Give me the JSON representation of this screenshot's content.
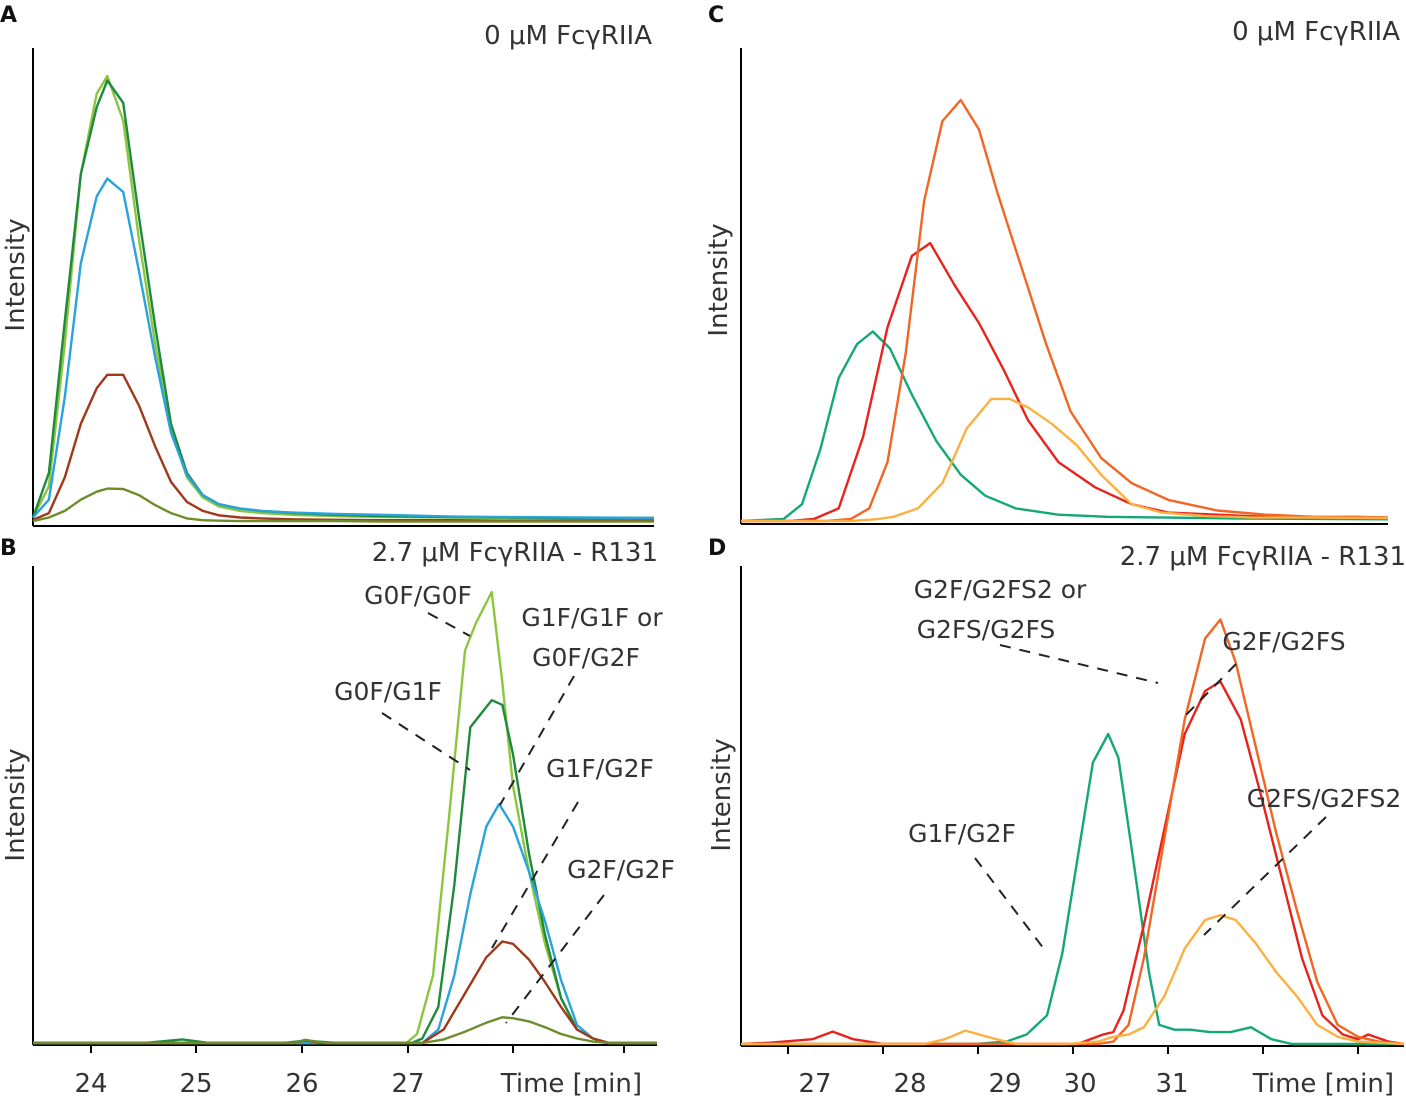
{
  "colors": {
    "G0F/G0F": "#8cc63f",
    "G0F/G1F": "#1e8a3c",
    "G1F/G1F or G0F/G2F": "#29a3dd",
    "G1F/G2F_A": "#a0391c",
    "G2F/G2F": "#6f8c2a",
    "G1F/G2F_C": "#14a876",
    "G2F/G2FS": "#e8231e",
    "G2F/G2FS2 or G2FS/G2FS": "#f26522",
    "G2FS/G2FS2": "#fbb040"
  },
  "chart_data": [
    {
      "panel": "A",
      "type": "line",
      "title": "0 μM FcγRIIA",
      "ylabel": "Intensity",
      "xlabel": "",
      "grid": false,
      "xlim": [
        23.45,
        29.3
      ],
      "ylim": [
        0,
        100
      ],
      "series": [
        {
          "name": "G0F/G0F",
          "color_key": "G0F/G0F",
          "x": [
            23.45,
            23.6,
            23.75,
            23.9,
            24.05,
            24.15,
            24.3,
            24.45,
            24.6,
            24.75,
            24.9,
            25.05,
            25.2,
            25.4,
            25.6,
            25.9,
            26.3,
            26.8,
            27.4,
            28.0,
            28.6,
            29.3
          ],
          "y": [
            1,
            8,
            40,
            78,
            96,
            100,
            90,
            63,
            40,
            21,
            10,
            5.5,
            3.5,
            2.5,
            2,
            1.6,
            1.3,
            1.1,
            1,
            0.9,
            0.8,
            0.8
          ]
        },
        {
          "name": "G0F/G1F",
          "color_key": "G0F/G1F",
          "x": [
            23.45,
            23.6,
            23.75,
            23.9,
            24.05,
            24.15,
            24.3,
            24.45,
            24.6,
            24.75,
            24.9,
            25.05,
            25.2,
            25.4,
            25.6,
            25.9,
            26.3,
            26.8,
            27.4,
            28.0,
            28.6,
            29.3
          ],
          "y": [
            1,
            11,
            45,
            78,
            93,
            99,
            94,
            68,
            44,
            22,
            11,
            6,
            4,
            3,
            2.5,
            2,
            1.6,
            1.3,
            1.1,
            1,
            0.9,
            0.9
          ]
        },
        {
          "name": "G1F/G1F or G0F/G2F",
          "color_key": "G1F/G1F or G0F/G2F",
          "x": [
            23.45,
            23.6,
            23.75,
            23.9,
            24.05,
            24.15,
            24.3,
            24.45,
            24.6,
            24.75,
            24.9,
            25.05,
            25.2,
            25.4,
            25.6,
            25.9,
            26.3,
            26.8,
            27.4,
            28.0,
            28.6,
            29.3
          ],
          "y": [
            1,
            5,
            28,
            58,
            73,
            77,
            74,
            56,
            37,
            20,
            10.5,
            6,
            4,
            3,
            2.5,
            2.1,
            1.8,
            1.6,
            1.2,
            1.1,
            1,
            0.9
          ]
        },
        {
          "name": "G1F/G2F",
          "color_key": "G1F/G2F_A",
          "x": [
            23.45,
            23.6,
            23.75,
            23.9,
            24.05,
            24.15,
            24.3,
            24.45,
            24.6,
            24.75,
            24.9,
            25.05,
            25.2,
            25.4,
            25.6,
            25.9,
            26.3,
            26.8,
            27.4,
            28.0,
            28.6,
            29.3
          ],
          "y": [
            0.5,
            2,
            10,
            22,
            30,
            33,
            33,
            26,
            17,
            9,
            4.5,
            2.5,
            1.5,
            1,
            0.8,
            0.6,
            0.5,
            0.4,
            0.4,
            0.3,
            0.3,
            0.3
          ]
        },
        {
          "name": "G2F/G2F",
          "color_key": "G2F/G2F",
          "x": [
            23.45,
            23.6,
            23.75,
            23.9,
            24.05,
            24.15,
            24.3,
            24.45,
            24.6,
            24.75,
            24.9,
            25.05,
            25.2,
            25.4,
            25.6,
            25.9,
            26.3,
            26.8,
            27.4,
            28.0,
            28.6,
            29.3
          ],
          "y": [
            0.2,
            1,
            2.5,
            5,
            6.8,
            7.5,
            7.4,
            6,
            3.8,
            2,
            0.8,
            0.4,
            0.3,
            0.2,
            0.2,
            0.2,
            0.2,
            0.1,
            0.1,
            0.1,
            0.1,
            0.1
          ]
        }
      ]
    },
    {
      "panel": "B",
      "type": "line",
      "title": "2.7 μM FcγRIIA - R131",
      "ylabel": "Intensity",
      "xlabel": "Time [min]",
      "grid": false,
      "xlim": [
        23.45,
        29.3
      ],
      "xticks": [
        24,
        25,
        26,
        27
      ],
      "ylim": [
        0,
        100
      ],
      "series": [
        {
          "name": "G0F/G0F",
          "color_key": "G0F/G0F",
          "x": [
            23.45,
            24.5,
            25.2,
            26.5,
            26.95,
            27.05,
            27.2,
            27.35,
            27.5,
            27.6,
            27.75,
            27.85,
            27.95,
            28.1,
            28.25,
            28.4,
            28.55,
            28.7,
            28.85,
            29.3
          ],
          "y": [
            0,
            0,
            0,
            0,
            0,
            2,
            15,
            50,
            87,
            93,
            100,
            80,
            57,
            38,
            22,
            10,
            3,
            1,
            0,
            0
          ]
        },
        {
          "name": "G0F/G1F",
          "color_key": "G0F/G1F",
          "x": [
            23.45,
            24.5,
            24.85,
            25.1,
            25.8,
            26.0,
            26.3,
            27.0,
            27.1,
            27.25,
            27.4,
            27.55,
            27.75,
            27.85,
            27.95,
            28.1,
            28.25,
            28.4,
            28.55,
            28.7,
            28.85,
            29.3
          ],
          "y": [
            0,
            0,
            0.8,
            0,
            0,
            0.5,
            0,
            0,
            1,
            8,
            35,
            70,
            76,
            75,
            64,
            42,
            24,
            10,
            3,
            1,
            0,
            0
          ]
        },
        {
          "name": "G1F/G1F or G0F/G2F",
          "color_key": "G1F/G1F or G0F/G2F",
          "x": [
            23.45,
            25.0,
            26.5,
            27.1,
            27.25,
            27.4,
            27.55,
            27.7,
            27.82,
            27.95,
            28.1,
            28.25,
            28.4,
            28.55,
            28.7,
            28.85,
            29.3
          ],
          "y": [
            0,
            0,
            0,
            0,
            3,
            15,
            33,
            48,
            53,
            48,
            38,
            27,
            14,
            4,
            1,
            0,
            0
          ]
        },
        {
          "name": "G1F/G2F",
          "color_key": "G1F/G2F_A",
          "x": [
            23.45,
            25.9,
            26.0,
            26.15,
            27.1,
            27.3,
            27.5,
            27.7,
            27.85,
            27.95,
            28.1,
            28.25,
            28.4,
            28.55,
            28.7,
            28.85,
            29.3
          ],
          "y": [
            0,
            0,
            0.6,
            0,
            0,
            3,
            11,
            19,
            22.5,
            22,
            18.5,
            13.5,
            8,
            3,
            1,
            0,
            0
          ]
        },
        {
          "name": "G2F/G2F",
          "color_key": "G2F/G2F",
          "x": [
            23.45,
            25.9,
            26.0,
            26.2,
            27.1,
            27.3,
            27.5,
            27.7,
            27.85,
            27.95,
            28.1,
            28.25,
            28.4,
            28.55,
            28.7,
            28.85,
            29.3
          ],
          "y": [
            0,
            0,
            0.7,
            0,
            0,
            0.8,
            2.5,
            4.5,
            5.7,
            5.5,
            4.8,
            3.5,
            2,
            1,
            0.3,
            0,
            0
          ]
        }
      ],
      "annotations": [
        "G0F/G0F",
        "G1F/G1F or",
        "G0F/G2F",
        "G0F/G1F",
        "G1F/G2F",
        "G2F/G2F"
      ]
    },
    {
      "panel": "C",
      "type": "line",
      "title": "0 μM FcγRIIA",
      "ylabel": "Intensity",
      "xlabel": "",
      "grid": false,
      "xlim": [
        26.5,
        31.8
      ],
      "ylim": [
        0,
        100
      ],
      "series": [
        {
          "name": "G1F/G2F",
          "color_key": "G1F/G2F_C",
          "x": [
            26.5,
            26.85,
            27.0,
            27.15,
            27.3,
            27.45,
            27.58,
            27.72,
            27.9,
            28.1,
            28.3,
            28.5,
            28.75,
            29.1,
            29.5,
            30.0,
            30.6,
            31.2,
            31.8
          ],
          "y": [
            0,
            0.5,
            4,
            17,
            34,
            42,
            45,
            41,
            30,
            19,
            11,
            6,
            3,
            1.5,
            1,
            0.8,
            0.6,
            0.5,
            0.4
          ]
        },
        {
          "name": "G2F/G2FS",
          "color_key": "G2F/G2FS",
          "x": [
            26.5,
            26.9,
            27.1,
            27.3,
            27.5,
            27.7,
            27.9,
            28.05,
            28.25,
            28.45,
            28.65,
            28.85,
            29.1,
            29.4,
            29.7,
            30.0,
            30.4,
            30.8,
            31.2,
            31.5,
            31.8
          ],
          "y": [
            0,
            0,
            0.5,
            3,
            20,
            46,
            63,
            66,
            56,
            47,
            36,
            24,
            14,
            8,
            4,
            2,
            1.5,
            1,
            0.8,
            1,
            0.8
          ]
        },
        {
          "name": "G2F/G2FS2 or G2FS/G2FS",
          "color_key": "G2F/G2FS2 or G2FS/G2FS",
          "x": [
            26.5,
            27.2,
            27.4,
            27.55,
            27.7,
            27.85,
            28.0,
            28.15,
            28.3,
            28.45,
            28.6,
            28.8,
            29.0,
            29.2,
            29.45,
            29.7,
            30.0,
            30.4,
            30.8,
            31.2,
            31.5,
            31.8
          ],
          "y": [
            0,
            0,
            0.5,
            3,
            14,
            40,
            76,
            95,
            100,
            93,
            78,
            60,
            42,
            26,
            15,
            9,
            5,
            2.5,
            1.5,
            1,
            1,
            0.8
          ]
        },
        {
          "name": "G2FS/G2FS2",
          "color_key": "G2FS/G2FS2",
          "x": [
            26.5,
            27.4,
            27.6,
            27.75,
            27.95,
            28.15,
            28.35,
            28.55,
            28.7,
            28.85,
            29.05,
            29.25,
            29.45,
            29.7,
            29.95,
            30.3,
            30.7,
            31.2,
            31.8
          ],
          "y": [
            0,
            0,
            0.4,
            1,
            3,
            9,
            22,
            29,
            29,
            27,
            23,
            18,
            11,
            4,
            2,
            1.2,
            0.8,
            0.8,
            0.7
          ]
        }
      ]
    },
    {
      "panel": "D",
      "type": "line",
      "title": "2.7 μM FcγRIIA - R131",
      "ylabel": "Intensity",
      "xlabel": "Time [min]",
      "grid": false,
      "xlim": [
        26.4,
        32.9
      ],
      "xticks": [
        27,
        28,
        29,
        30,
        31,
        32
      ],
      "xtick_labels": [
        "27",
        "28",
        "29",
        "30",
        "31",
        ""
      ],
      "ylim": [
        0,
        100
      ],
      "series": [
        {
          "name": "G1F/G2F",
          "color_key": "G1F/G2F_C",
          "x": [
            26.4,
            28.7,
            29.0,
            29.2,
            29.4,
            29.55,
            29.7,
            29.85,
            30.0,
            30.1,
            30.25,
            30.4,
            30.5,
            30.65,
            30.8,
            31.0,
            31.2,
            31.4,
            31.6,
            31.8,
            32.9
          ],
          "y": [
            0,
            0,
            0.5,
            2,
            6,
            19,
            39,
            59,
            65,
            60,
            38,
            15,
            4,
            3,
            3,
            2.5,
            2.5,
            3.5,
            1,
            0,
            0
          ]
        },
        {
          "name": "G2F/G2FS",
          "color_key": "G2F/G2FS",
          "x": [
            26.4,
            26.7,
            27.1,
            27.3,
            27.5,
            27.8,
            28.2,
            28.6,
            29.0,
            29.4,
            29.7,
            29.95,
            30.05,
            30.15,
            30.35,
            30.55,
            30.75,
            30.95,
            31.1,
            31.3,
            31.5,
            31.7,
            31.9,
            32.1,
            32.3,
            32.45,
            32.55,
            32.75,
            32.9
          ],
          "y": [
            0,
            0.3,
            1,
            2.6,
            1,
            0,
            0,
            0,
            0,
            0,
            0,
            2,
            2.5,
            7,
            25,
            45,
            65,
            74,
            76,
            68,
            52,
            35,
            18,
            6,
            2,
            1,
            2,
            0.5,
            0
          ]
        },
        {
          "name": "G2F/G2FS2 or G2FS/G2FS",
          "color_key": "G2F/G2FS2 or G2FS/G2FS",
          "x": [
            26.4,
            29.9,
            30.05,
            30.2,
            30.35,
            30.55,
            30.75,
            30.95,
            31.1,
            31.25,
            31.45,
            31.65,
            31.85,
            32.05,
            32.25,
            32.45,
            32.65,
            32.9
          ],
          "y": [
            0,
            0,
            0.5,
            4,
            18,
            43,
            68,
            85,
            89,
            80,
            62,
            44,
            28,
            13,
            4,
            1.5,
            0.5,
            0
          ]
        },
        {
          "name": "G2FS/G2FS2",
          "color_key": "G2FS/G2FS2",
          "x": [
            26.4,
            28.2,
            28.4,
            28.6,
            28.9,
            29.1,
            29.3,
            29.6,
            29.9,
            30.05,
            30.2,
            30.35,
            30.55,
            30.75,
            30.95,
            31.1,
            31.25,
            31.45,
            31.65,
            31.85,
            32.05,
            32.25,
            32.45,
            32.9
          ],
          "y": [
            0,
            0,
            1,
            2.8,
            1,
            0,
            0,
            0,
            0.5,
            1.5,
            2,
            3.5,
            10,
            20,
            26,
            27,
            26,
            21,
            15,
            10,
            4,
            1.5,
            0.5,
            0
          ]
        }
      ],
      "annotations": [
        "G2F/G2FS2 or",
        "G2FS/G2FS",
        "G2F/G2FS",
        "G2FS/G2FS2",
        "G1F/G2F"
      ]
    }
  ],
  "figure": {
    "panels": {
      "A": {
        "letter": "A",
        "condition": "0 μM FcγRIIA",
        "ylabel": "Intensity"
      },
      "B": {
        "letter": "B",
        "condition": "2.7 μM FcγRIIA - R131",
        "ylabel": "Intensity",
        "xlabel": "Time [min]"
      },
      "C": {
        "letter": "C",
        "condition": "0 μM FcγRIIA",
        "ylabel": "Intensity"
      },
      "D": {
        "letter": "D",
        "condition": "2.7 μM FcγRIIA - R131",
        "ylabel": "Intensity",
        "xlabel": "Time [min]"
      }
    },
    "labels_B": {
      "g0fg0f": "G0F/G0F",
      "g1fg1f_line1": "G1F/G1F or",
      "g1fg1f_line2": "G0F/G2F",
      "g0fg1f": "G0F/G1F",
      "g1fg2f": "G1F/G2F",
      "g2fg2f": "G2F/G2F"
    },
    "labels_D": {
      "g2fg2fs2_line1": "G2F/G2FS2 or",
      "g2fg2fs2_line2": "G2FS/G2FS",
      "g2fg2fs": "G2F/G2FS",
      "g2fsg2fs2": "G2FS/G2FS2",
      "g1fg2f": "G1F/G2F"
    },
    "ticks_B": [
      "24",
      "25",
      "26",
      "27"
    ],
    "ticks_D": [
      "27",
      "28",
      "29",
      "30",
      "31"
    ]
  }
}
